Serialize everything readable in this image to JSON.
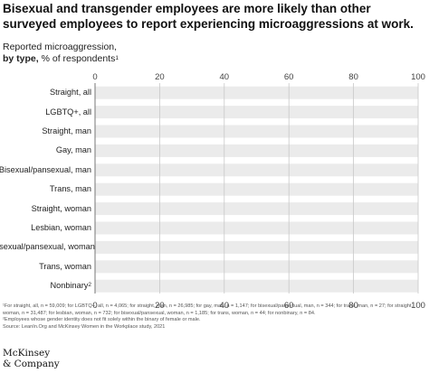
{
  "title": "Bisexual and transgender employees are more likely than other surveyed employees to report experiencing microaggressions at work.",
  "subtitle": {
    "line1": "Reported microaggression,",
    "line2_bold": "by type,",
    "line2_rest": " % of respondents",
    "footnote_mark": "1"
  },
  "chart_data": {
    "type": "bar",
    "categories": [
      "Straight, all",
      "LGBTQ+, all",
      "Straight, man",
      "Gay, man",
      "Bisexual/pansexual, man",
      "Trans, man",
      "Straight, woman",
      "Lesbian, woman",
      "Bisexual/pansexual, woman",
      "Trans, woman",
      "Nonbinary"
    ],
    "category_marks": [
      "",
      "",
      "",
      "",
      "",
      "",
      "",
      "",
      "",
      "",
      "2"
    ],
    "series": [],
    "xlim": [
      0,
      100
    ],
    "ticks": [
      "0",
      "20",
      "40",
      "60",
      "80",
      "100"
    ],
    "tick_values": [
      0,
      20,
      40,
      60,
      80,
      100
    ],
    "grid": true
  },
  "footnotes": {
    "note1": "¹For straight, all, n = 59,009; for LGBTQ+, all, n = 4,065; for straight, man, n = 26,985; for gay, man, n = 1,147; for bisexual/pansexual, man, n = 344; for trans, man, n = 27; for straight, woman, n = 31,487; for lesbian, woman, n = 732; for bisexual/pansexual, woman, n = 1,185; for trans, woman, n = 44; for nonbinary, n = 84.",
    "note2": "²Employees whose gender identity does not fit solely within the binary of female or male.",
    "source": "Source: LeanIn.Org and McKinsey Women in the Workplace study, 2021"
  },
  "logo": {
    "line1": "McKinsey",
    "line2": "& Company"
  },
  "colors": {
    "row_band": "#ebebeb",
    "gridline": "#c8c8c8",
    "axis": "#777777"
  }
}
